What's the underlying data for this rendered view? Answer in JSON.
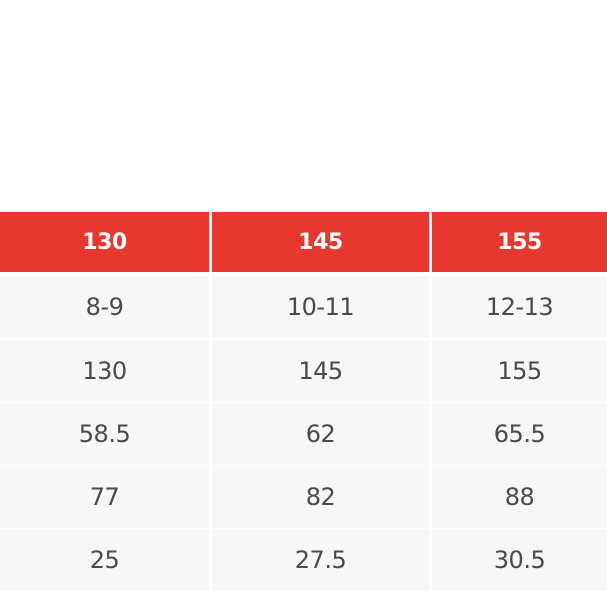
{
  "size_table": {
    "header": [
      "130",
      "145",
      "155"
    ],
    "rows": [
      [
        "8-9",
        "10-11",
        "12-13"
      ],
      [
        "130",
        "145",
        "155"
      ],
      [
        "58.5",
        "62",
        "65.5"
      ],
      [
        "77",
        "82",
        "88"
      ],
      [
        "25",
        "27.5",
        "30.5"
      ]
    ],
    "colors": {
      "header_bg": "#e8372e",
      "header_text": "#ffffff",
      "cell_bg": "#f7f7f7",
      "cell_text": "#4a4a4a"
    }
  }
}
